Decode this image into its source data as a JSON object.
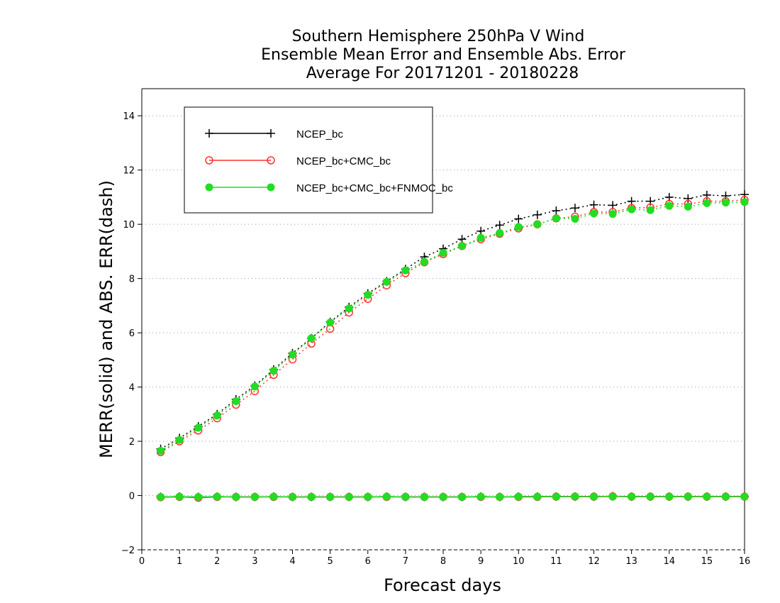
{
  "chart_data": {
    "type": "line",
    "title": [
      "Southern Hemisphere 250hPa V Wind",
      "Ensemble Mean Error and Ensemble Abs. Error",
      "Average For 20171201 - 20180228"
    ],
    "xlabel": "Forecast days",
    "ylabel": "MERR(solid) and ABS. ERR(dash)",
    "xlim": [
      0,
      16
    ],
    "ylim": [
      -2,
      15
    ],
    "x_ticks": [
      0,
      1,
      2,
      3,
      4,
      5,
      6,
      7,
      8,
      9,
      10,
      11,
      12,
      13,
      14,
      15,
      16
    ],
    "y_ticks": [
      -2,
      0,
      2,
      4,
      6,
      8,
      10,
      12,
      14
    ],
    "grid": "horizontal dotted",
    "legend_position": "top-left",
    "x": [
      0.5,
      1,
      1.5,
      2,
      2.5,
      3,
      3.5,
      4,
      4.5,
      5,
      5.5,
      6,
      6.5,
      7,
      7.5,
      8,
      8.5,
      9,
      9.5,
      10,
      10.5,
      11,
      11.5,
      12,
      12.5,
      13,
      13.5,
      14,
      14.5,
      15,
      15.5,
      16
    ],
    "series": [
      {
        "name": "NCEP_bc",
        "color": "#000000",
        "marker": "plus",
        "abs_error": [
          1.72,
          2.12,
          2.55,
          3.0,
          3.55,
          4.05,
          4.65,
          5.25,
          5.8,
          6.4,
          6.95,
          7.45,
          7.9,
          8.35,
          8.8,
          9.1,
          9.45,
          9.75,
          9.97,
          10.2,
          10.35,
          10.5,
          10.6,
          10.72,
          10.7,
          10.85,
          10.85,
          11.0,
          10.95,
          11.08,
          11.05,
          11.1
        ],
        "mean_error": [
          -0.05,
          -0.04,
          -0.05,
          -0.04,
          -0.05,
          -0.05,
          -0.04,
          -0.05,
          -0.05,
          -0.05,
          -0.05,
          -0.05,
          -0.04,
          -0.05,
          -0.05,
          -0.05,
          -0.05,
          -0.04,
          -0.05,
          -0.04,
          -0.04,
          -0.04,
          -0.04,
          -0.04,
          -0.03,
          -0.04,
          -0.04,
          -0.04,
          -0.04,
          -0.04,
          -0.04,
          -0.04
        ]
      },
      {
        "name": "NCEP_bc+CMC_bc",
        "color": "#ff3333",
        "marker": "open-circle",
        "abs_error": [
          1.6,
          2.0,
          2.4,
          2.85,
          3.35,
          3.85,
          4.45,
          5.02,
          5.6,
          6.15,
          6.75,
          7.25,
          7.75,
          8.2,
          8.6,
          8.9,
          9.2,
          9.45,
          9.65,
          9.85,
          10.0,
          10.22,
          10.28,
          10.45,
          10.45,
          10.6,
          10.62,
          10.75,
          10.75,
          10.85,
          10.85,
          10.9
        ],
        "mean_error": [
          -0.06,
          -0.05,
          -0.08,
          -0.05,
          -0.05,
          -0.05,
          -0.05,
          -0.05,
          -0.05,
          -0.05,
          -0.05,
          -0.05,
          -0.05,
          -0.05,
          -0.05,
          -0.05,
          -0.05,
          -0.05,
          -0.05,
          -0.05,
          -0.05,
          -0.04,
          -0.04,
          -0.04,
          -0.03,
          -0.04,
          -0.04,
          -0.04,
          -0.04,
          -0.04,
          -0.04,
          -0.04
        ]
      },
      {
        "name": "NCEP_bc+CMC_bc+FNMOC_bc",
        "color": "#22dd22",
        "marker": "filled-circle",
        "abs_error": [
          1.65,
          2.05,
          2.5,
          2.95,
          3.48,
          4.02,
          4.6,
          5.2,
          5.8,
          6.38,
          6.9,
          7.4,
          7.88,
          8.3,
          8.62,
          8.95,
          9.2,
          9.5,
          9.68,
          9.9,
          10.0,
          10.22,
          10.2,
          10.4,
          10.38,
          10.55,
          10.52,
          10.68,
          10.65,
          10.78,
          10.8,
          10.82
        ],
        "mean_error": [
          -0.05,
          -0.04,
          -0.05,
          -0.04,
          -0.05,
          -0.05,
          -0.04,
          -0.05,
          -0.05,
          -0.05,
          -0.05,
          -0.05,
          -0.04,
          -0.05,
          -0.05,
          -0.05,
          -0.05,
          -0.04,
          -0.05,
          -0.04,
          -0.04,
          -0.04,
          -0.04,
          -0.04,
          -0.04,
          -0.04,
          -0.04,
          -0.04,
          -0.04,
          -0.04,
          -0.04,
          -0.04
        ]
      }
    ]
  }
}
